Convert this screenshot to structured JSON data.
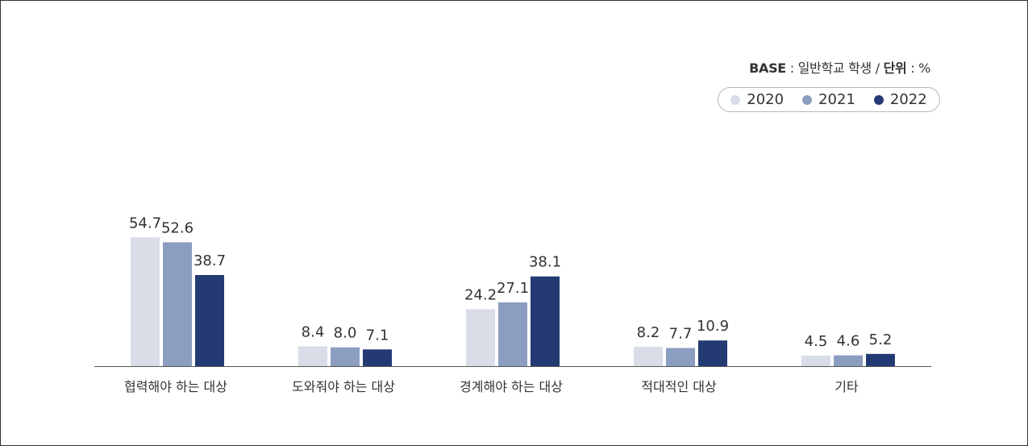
{
  "note": {
    "base_label": "BASE",
    "base_sep": " : ",
    "base_value": "일반학교 학생 / ",
    "unit_label": "단위",
    "unit_sep": " : ",
    "unit_value": "%"
  },
  "colors": {
    "2020": "#d9dde8",
    "2021": "#8c9dc2",
    "2022": "#233a73",
    "axis": "#555555"
  },
  "chart_data": {
    "type": "bar",
    "categories": [
      "협력해야 하는 대상",
      "도와줘야 하는 대상",
      "경계해야 하는 대상",
      "적대적인 대상",
      "기타"
    ],
    "series": [
      {
        "name": "2020",
        "values": [
          54.7,
          8.4,
          24.2,
          8.2,
          4.5
        ]
      },
      {
        "name": "2021",
        "values": [
          52.6,
          8.0,
          27.1,
          7.7,
          4.6
        ]
      },
      {
        "name": "2022",
        "values": [
          38.7,
          7.1,
          38.1,
          10.9,
          5.2
        ]
      }
    ],
    "value_labels": [
      [
        "54.7",
        "8.4",
        "24.2",
        "8.2",
        "4.5"
      ],
      [
        "52.6",
        "8.0",
        "27.1",
        "7.7",
        "4.6"
      ],
      [
        "38.7",
        "7.1",
        "38.1",
        "10.9",
        "5.2"
      ]
    ],
    "ylim": [
      0,
      60
    ],
    "legend_position": "top-right",
    "grid": false
  }
}
